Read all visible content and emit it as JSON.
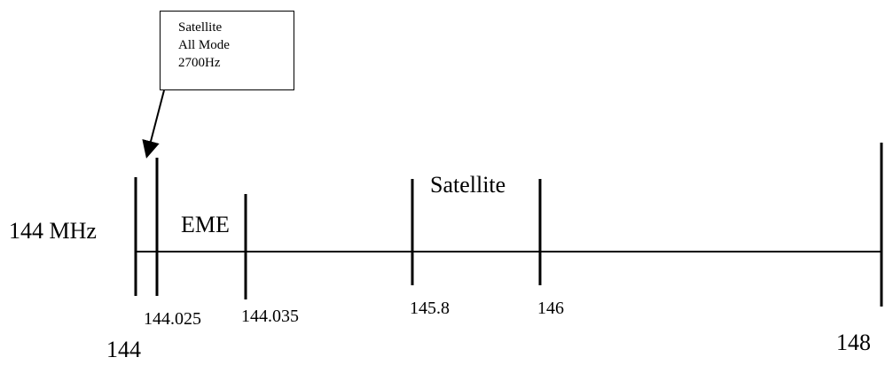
{
  "diagram": {
    "band_label": "144 MHz",
    "callout": {
      "lines": [
        "Satellite",
        "All Mode",
        "2700Hz"
      ]
    },
    "segments": {
      "eme": "EME",
      "satellite": "Satellite"
    },
    "frequency_labels": {
      "start": "144",
      "f144_025": "144.025",
      "f144_035": "144.035",
      "f145_8": "145.8",
      "f146": "146",
      "end": "148"
    }
  }
}
